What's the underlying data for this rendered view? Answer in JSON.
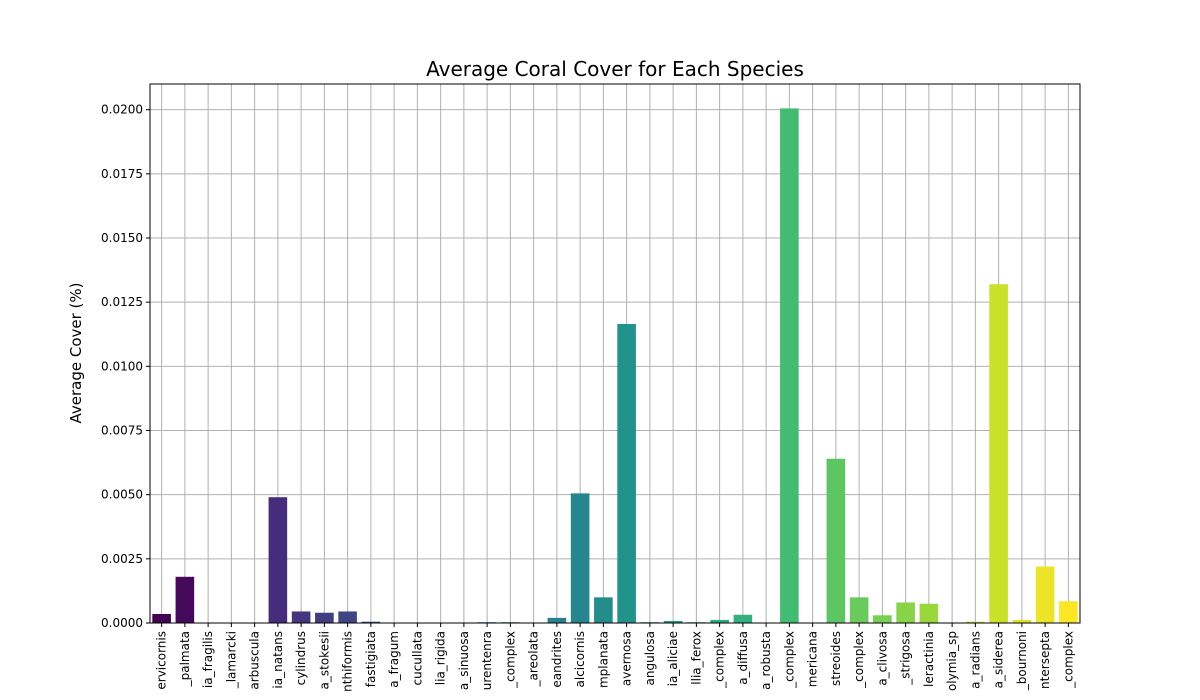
{
  "chart_data": {
    "type": "bar",
    "title": "Average Coral Cover for Each Species",
    "xlabel": "",
    "ylabel": "Average Cover (%)",
    "ylim": [
      0,
      0.021
    ],
    "yticks": [
      0.0,
      0.0025,
      0.005,
      0.0075,
      0.01,
      0.0125,
      0.015,
      0.0175,
      0.02
    ],
    "ytick_labels": [
      "0.0000",
      "0.0025",
      "0.0050",
      "0.0075",
      "0.0100",
      "0.0125",
      "0.0150",
      "0.0175",
      "0.0200"
    ],
    "grid": true,
    "colormap": "viridis",
    "categories": [
      "ervicornis",
      "_palmata",
      "ia_fragilis",
      "_lamarcki",
      "arbuscula",
      "ia_natans",
      "cylindrus",
      "a_stokesii",
      "nthiformis",
      "fastigiata",
      "a_fragum",
      "cucullata",
      "lia_rigida",
      "a_sinuosa",
      "urentenra",
      "_complex",
      "_areolata",
      "eandrites",
      "alcicornis",
      "mplanata",
      "avernosa",
      "angulosa",
      "ia_aliciae",
      "llia_ferox",
      "_complex",
      "a_diffusa",
      "a_robusta",
      "_complex",
      "mericana",
      "streoides",
      "_complex",
      "a_clivosa",
      "_strigosa",
      "leractinia",
      "olymia_sp",
      "a_radians",
      "a_siderea",
      "_bournoni",
      "ntersepta",
      "_complex"
    ],
    "values": [
      0.00035,
      0.0018,
      0.0,
      0.0,
      0.0,
      0.0049,
      0.00045,
      0.0004,
      0.00045,
      5e-05,
      0.0,
      0.0,
      0.0,
      0.0,
      3e-05,
      3e-05,
      0.0,
      0.0002,
      0.00505,
      0.001,
      0.01165,
      3e-05,
      8e-05,
      3e-05,
      0.00012,
      0.00032,
      0.0,
      0.02005,
      0.0,
      0.0064,
      0.001,
      0.0003,
      0.0008,
      0.00075,
      0.0,
      5e-05,
      0.0132,
      0.00012,
      0.0022,
      0.00085
    ]
  }
}
